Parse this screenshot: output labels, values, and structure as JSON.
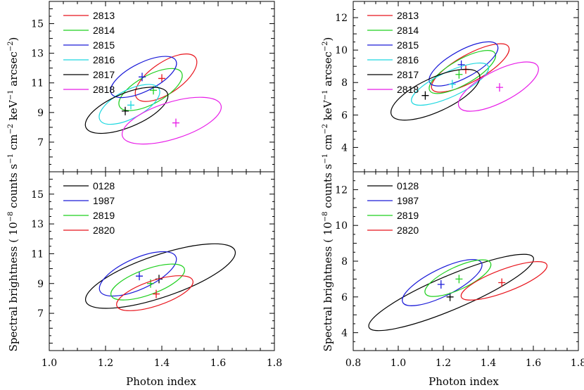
{
  "figure": {
    "xlabel": "Photon index",
    "ylabel_parts": [
      "Spectral brightness ( 10",
      "−8",
      " counts s",
      "−1",
      " cm",
      "−2",
      " keV",
      "−1",
      " arcsec",
      "−2",
      ")"
    ]
  },
  "chart_data": [
    {
      "type": "scatter",
      "panel": "left-top",
      "xlim": [
        1.0,
        1.8
      ],
      "ylim": [
        5.0,
        16.5
      ],
      "xticks": [
        1.0,
        1.2,
        1.4,
        1.6,
        1.8
      ],
      "yticks": [
        7,
        9,
        11,
        13,
        15
      ],
      "show_xticklabels": false,
      "legend_position": "top-left",
      "series": [
        {
          "name": "2813",
          "color": "#e8141c",
          "x": 1.4,
          "y": 11.3,
          "ellipse": {
            "x1": 1.31,
            "y1": 10.0,
            "x2": 1.52,
            "y2": 12.7,
            "w": 0.11
          }
        },
        {
          "name": "2814",
          "color": "#1fd01f",
          "x": 1.37,
          "y": 10.5,
          "ellipse": {
            "x1": 1.25,
            "y1": 9.4,
            "x2": 1.47,
            "y2": 11.7,
            "w": 0.1
          }
        },
        {
          "name": "2815",
          "color": "#1a1ad8",
          "x": 1.33,
          "y": 11.4,
          "ellipse": {
            "x1": 1.22,
            "y1": 10.3,
            "x2": 1.45,
            "y2": 12.5,
            "w": 0.1
          }
        },
        {
          "name": "2816",
          "color": "#1fd8e0",
          "x": 1.29,
          "y": 9.5,
          "ellipse": {
            "x1": 1.18,
            "y1": 8.5,
            "x2": 1.39,
            "y2": 10.6,
            "w": 0.1
          }
        },
        {
          "name": "2817",
          "color": "#000000",
          "x": 1.27,
          "y": 9.1,
          "ellipse": {
            "x1": 1.13,
            "y1": 8.0,
            "x2": 1.42,
            "y2": 10.3,
            "w": 0.12
          }
        },
        {
          "name": "2818",
          "color": "#e81ce8",
          "x": 1.45,
          "y": 8.3,
          "ellipse": {
            "x1": 1.26,
            "y1": 7.4,
            "x2": 1.61,
            "y2": 9.5,
            "w": 0.13
          }
        }
      ]
    },
    {
      "type": "scatter",
      "panel": "left-bottom",
      "xlim": [
        1.0,
        1.8
      ],
      "ylim": [
        4.5,
        16.5
      ],
      "xticks": [
        1.0,
        1.2,
        1.4,
        1.6,
        1.8
      ],
      "yticks": [
        7,
        9,
        11,
        13,
        15
      ],
      "show_xticklabels": true,
      "legend_position": "top-left",
      "series": [
        {
          "name": "0128",
          "color": "#000000",
          "x": 1.39,
          "y": 9.3,
          "ellipse": {
            "x1": 1.13,
            "y1": 7.8,
            "x2": 1.66,
            "y2": 11.2,
            "w": 0.15
          }
        },
        {
          "name": "1987",
          "color": "#1a1ad8",
          "x": 1.32,
          "y": 9.5,
          "ellipse": {
            "x1": 1.18,
            "y1": 8.5,
            "x2": 1.45,
            "y2": 10.8,
            "w": 0.11
          }
        },
        {
          "name": "2819",
          "color": "#1fd01f",
          "x": 1.36,
          "y": 9.0,
          "ellipse": {
            "x1": 1.22,
            "y1": 8.2,
            "x2": 1.48,
            "y2": 10.0,
            "w": 0.09
          }
        },
        {
          "name": "2820",
          "color": "#e8141c",
          "x": 1.38,
          "y": 8.3,
          "ellipse": {
            "x1": 1.24,
            "y1": 7.5,
            "x2": 1.51,
            "y2": 9.2,
            "w": 0.09
          }
        }
      ]
    },
    {
      "type": "scatter",
      "panel": "right-top",
      "xlim": [
        0.8,
        1.8
      ],
      "ylim": [
        2.5,
        13.0
      ],
      "xticks": [
        0.8,
        1.0,
        1.2,
        1.4,
        1.6,
        1.8
      ],
      "yticks": [
        4,
        6,
        8,
        10,
        12
      ],
      "show_xticklabels": false,
      "legend_position": "top-left",
      "series": [
        {
          "name": "2813",
          "color": "#e8141c",
          "x": 1.3,
          "y": 8.8,
          "ellipse": {
            "x1": 1.15,
            "y1": 7.6,
            "x2": 1.49,
            "y2": 10.2,
            "w": 0.12
          }
        },
        {
          "name": "2814",
          "color": "#1fd01f",
          "x": 1.27,
          "y": 8.5,
          "ellipse": {
            "x1": 1.14,
            "y1": 7.5,
            "x2": 1.43,
            "y2": 9.8,
            "w": 0.11
          }
        },
        {
          "name": "2815",
          "color": "#1a1ad8",
          "x": 1.28,
          "y": 9.1,
          "ellipse": {
            "x1": 1.14,
            "y1": 8.0,
            "x2": 1.44,
            "y2": 10.3,
            "w": 0.12
          }
        },
        {
          "name": "2816",
          "color": "#1fd8e0",
          "x": 1.24,
          "y": 7.9,
          "ellipse": {
            "x1": 1.06,
            "y1": 6.8,
            "x2": 1.4,
            "y2": 9.0,
            "w": 0.11
          }
        },
        {
          "name": "2817",
          "color": "#000000",
          "x": 1.12,
          "y": 7.2,
          "ellipse": {
            "x1": 0.97,
            "y1": 6.0,
            "x2": 1.36,
            "y2": 8.5,
            "w": 0.15
          }
        },
        {
          "name": "2818",
          "color": "#e81ce8",
          "x": 1.45,
          "y": 7.7,
          "ellipse": {
            "x1": 1.27,
            "y1": 6.5,
            "x2": 1.62,
            "y2": 9.0,
            "w": 0.14
          }
        }
      ]
    },
    {
      "type": "scatter",
      "panel": "right-bottom",
      "xlim": [
        0.8,
        1.8
      ],
      "ylim": [
        3.0,
        13.0
      ],
      "xticks": [
        0.8,
        1.0,
        1.2,
        1.4,
        1.6,
        1.8
      ],
      "yticks": [
        4,
        6,
        8,
        10,
        12
      ],
      "show_xticklabels": true,
      "legend_position": "top-left",
      "series": [
        {
          "name": "0128",
          "color": "#000000",
          "x": 1.23,
          "y": 6.0,
          "ellipse": {
            "x1": 0.87,
            "y1": 4.3,
            "x2": 1.6,
            "y2": 8.2,
            "w": 0.15
          }
        },
        {
          "name": "1987",
          "color": "#1a1ad8",
          "x": 1.19,
          "y": 6.7,
          "ellipse": {
            "x1": 1.02,
            "y1": 5.7,
            "x2": 1.37,
            "y2": 7.9,
            "w": 0.12
          }
        },
        {
          "name": "2819",
          "color": "#1fd01f",
          "x": 1.27,
          "y": 7.0,
          "ellipse": {
            "x1": 1.12,
            "y1": 6.2,
            "x2": 1.41,
            "y2": 7.9,
            "w": 0.1
          }
        },
        {
          "name": "2820",
          "color": "#e8141c",
          "x": 1.46,
          "y": 6.8,
          "ellipse": {
            "x1": 1.28,
            "y1": 6.0,
            "x2": 1.66,
            "y2": 7.8,
            "w": 0.1
          }
        }
      ]
    }
  ]
}
